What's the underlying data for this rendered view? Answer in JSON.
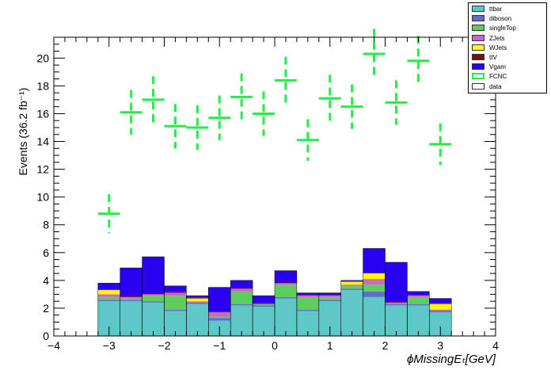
{
  "chart_data": {
    "type": "bar",
    "stacked": true,
    "ylabel": "Events (36.2 fb⁻¹)",
    "xlabel": "ϕMissingEₜ[GeV]",
    "xlim": [
      -4,
      4
    ],
    "ylim": [
      0,
      21.5
    ],
    "x_ticks": [
      "−4",
      "−3",
      "−2",
      "−1",
      "0",
      "1",
      "2",
      "3",
      "4"
    ],
    "y_ticks": [
      "0",
      "2",
      "4",
      "6",
      "8",
      "10",
      "12",
      "14",
      "16",
      "18",
      "20"
    ],
    "bin_edges": [
      -3.2,
      -2.8,
      -2.4,
      -2.0,
      -1.6,
      -1.2,
      -0.8,
      -0.4,
      0.0,
      0.4,
      0.8,
      1.2,
      1.6,
      2.0,
      2.4,
      2.8,
      3.2
    ],
    "series": [
      {
        "name": "ttbar",
        "color": "#5ec8c8",
        "values": [
          2.5,
          2.5,
          2.4,
          1.8,
          2.3,
          1.1,
          2.2,
          2.1,
          2.7,
          1.8,
          2.5,
          3.3,
          2.8,
          2.2,
          2.2,
          1.7
        ]
      },
      {
        "name": "diboson",
        "color": "#5c6fcf",
        "values": [
          0.1,
          0.1,
          0.1,
          0.1,
          0.1,
          0.2,
          0.1,
          0.1,
          0.1,
          0.1,
          0.1,
          0.1,
          0.4,
          0.1,
          0.1,
          0.1
        ]
      },
      {
        "name": "singleTop",
        "color": "#5fcc5f",
        "values": [
          0.2,
          0.1,
          0.4,
          1.0,
          0.0,
          0.1,
          0.9,
          0.1,
          0.9,
          0.9,
          0.2,
          0.2,
          0.5,
          0.0,
          0.5,
          0.0
        ]
      },
      {
        "name": "ZJets",
        "color": "#cc66cc",
        "values": [
          0.2,
          0.1,
          0.1,
          0.2,
          0.1,
          0.3,
          0.2,
          0.0,
          0.1,
          0.1,
          0.1,
          0.1,
          0.4,
          0.1,
          0.1,
          0.1
        ]
      },
      {
        "name": "WJets",
        "color": "#ffff00",
        "values": [
          0.3,
          0.0,
          0.0,
          0.0,
          0.2,
          0.0,
          0.0,
          0.0,
          0.0,
          0.0,
          0.0,
          0.2,
          0.4,
          0.0,
          0.0,
          0.4
        ]
      },
      {
        "name": "ttV",
        "color": "#7a0f0f",
        "values": [
          0.05,
          0.05,
          0.05,
          0.05,
          0.05,
          0.05,
          0.05,
          0.05,
          0.05,
          0.05,
          0.05,
          0.05,
          0.05,
          0.05,
          0.05,
          0.05
        ]
      },
      {
        "name": "Vgam",
        "color": "#2a00f0",
        "values": [
          0.45,
          2.05,
          2.65,
          0.45,
          0.15,
          1.75,
          0.55,
          0.55,
          0.85,
          0.15,
          0.15,
          0.05,
          1.75,
          2.85,
          0.25,
          0.35
        ]
      }
    ],
    "fcnc": {
      "name": "FCNC",
      "color": "#22ee44",
      "x": [
        -3.0,
        -2.6,
        -2.2,
        -1.8,
        -1.4,
        -1.0,
        -0.6,
        -0.2,
        0.2,
        0.6,
        1.0,
        1.4,
        1.8,
        2.2,
        2.6,
        3.0
      ],
      "y": [
        8.8,
        16.1,
        17.0,
        15.1,
        15.0,
        15.7,
        17.2,
        16.0,
        18.4,
        14.1,
        17.1,
        16.5,
        20.3,
        16.8,
        19.8,
        13.8
      ],
      "err": [
        1.4,
        1.6,
        1.7,
        1.6,
        1.6,
        1.6,
        1.7,
        1.6,
        1.7,
        1.5,
        1.7,
        1.6,
        1.8,
        1.6,
        1.8,
        1.5
      ]
    },
    "legend": {
      "placement": "top-right",
      "entries": [
        {
          "label": "ttbar",
          "fill": "#5ec8c8",
          "border": "#333333"
        },
        {
          "label": "diboson",
          "fill": "#5c6fcf",
          "border": "#333333"
        },
        {
          "label": "singleTop",
          "fill": "#5fcc5f",
          "border": "#333333"
        },
        {
          "label": "ZJets",
          "fill": "#cc66cc",
          "border": "#333333"
        },
        {
          "label": "WJets",
          "fill": "#ffff00",
          "border": "#333333"
        },
        {
          "label": "ttV",
          "fill": "#7a0f0f",
          "border": "#333333"
        },
        {
          "label": "Vgam",
          "fill": "#2a00f0",
          "border": "#333333"
        },
        {
          "label": "FCNC",
          "fill": "#ffffff",
          "border": "#22ee44"
        },
        {
          "label": "data",
          "fill": "#ffffff",
          "border": "#333333"
        }
      ]
    }
  }
}
